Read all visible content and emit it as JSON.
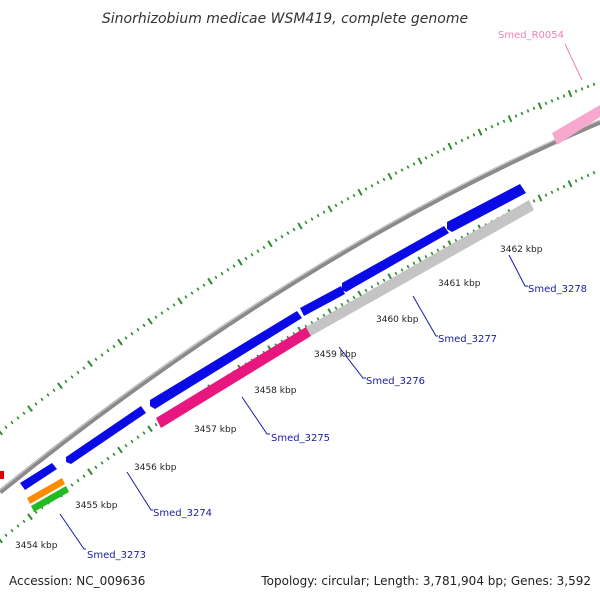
{
  "title": "Sinorhizobium medicae WSM419, complete genome",
  "footer": {
    "accession": "Accession: NC_009636",
    "stats": "Topology: circular; Length: 3,781,904 bp; Genes: 3,592"
  },
  "colors": {
    "backbone": "#8a8a8a",
    "cds": "#0a0ae6",
    "tick": "#2e8b2e",
    "label": "#1a1aa8",
    "rna_label": "#f07fb8"
  },
  "ticks": [
    "3454 kbp",
    "3455 kbp",
    "3456 kbp",
    "3457 kbp",
    "3458 kbp",
    "3459 kbp",
    "3460 kbp",
    "3461 kbp",
    "3462 kbp"
  ],
  "genes": [
    {
      "label": "Smed_3273",
      "color": "#0a0ae6"
    },
    {
      "label": "Smed_3274",
      "color": "#0a0ae6"
    },
    {
      "label": "Smed_3275",
      "color": "#0a0ae6"
    },
    {
      "label": "Smed_3276",
      "color": "#0a0ae6"
    },
    {
      "label": "Smed_3277",
      "color": "#0a0ae6"
    },
    {
      "label": "Smed_3278",
      "color": "#0a0ae6"
    },
    {
      "label": "Smed_R0054",
      "color": "#f7a8cf"
    }
  ]
}
